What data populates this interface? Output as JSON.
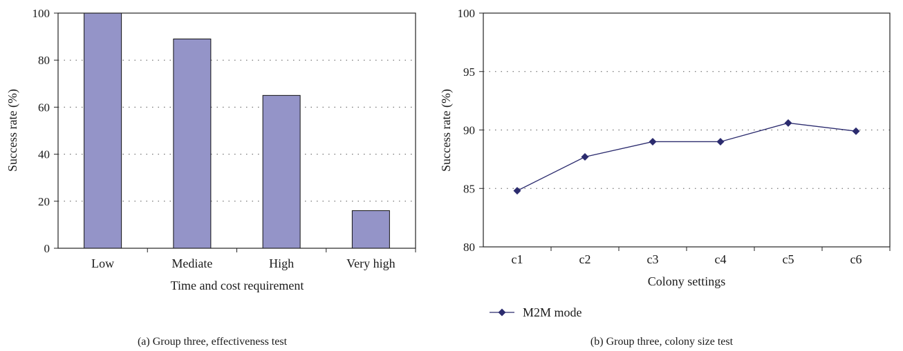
{
  "chart_data": [
    {
      "type": "bar",
      "categories": [
        "Low",
        "Mediate",
        "High",
        "Very high"
      ],
      "values": [
        100,
        89,
        65,
        16
      ],
      "xlabel": "Time and cost requirement",
      "ylabel": "Success rate (%)",
      "ylim": [
        0,
        100
      ],
      "yticks": [
        0,
        20,
        40,
        60,
        80,
        100
      ],
      "grid": "dotted horizontal",
      "bar_color": "#9494c8",
      "caption": "(a)  Group three, effectiveness test"
    },
    {
      "type": "line",
      "categories": [
        "c1",
        "c2",
        "c3",
        "c4",
        "c5",
        "c6"
      ],
      "series": [
        {
          "name": "M2M mode",
          "values": [
            84.8,
            87.7,
            89.0,
            89.0,
            90.6,
            89.9
          ]
        }
      ],
      "xlabel": "Colony settings",
      "ylabel": "Success rate (%)",
      "ylim": [
        80,
        100
      ],
      "yticks": [
        80,
        85,
        90,
        95,
        100
      ],
      "grid": "dotted horizontal",
      "legend_position": "bottom-left",
      "line_color": "#2b2b6e",
      "caption": "(b)  Group three, colony size test"
    }
  ]
}
